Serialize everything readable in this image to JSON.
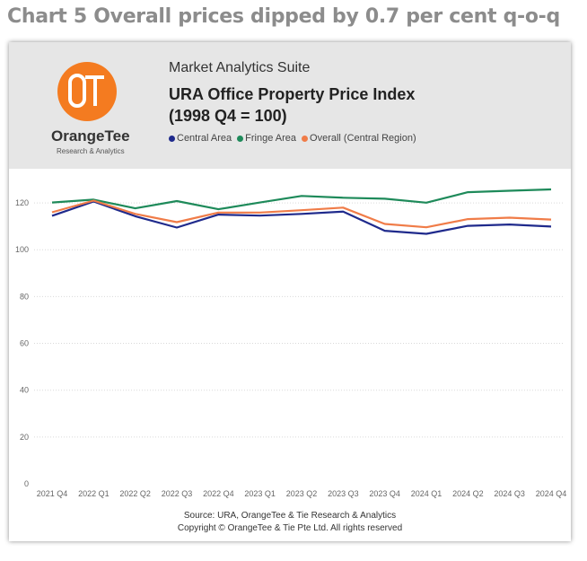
{
  "page": {
    "heading": "Chart 5 Overall prices dipped by 0.7 per cent q-o-q"
  },
  "card": {
    "suite_name": "Market Analytics Suite",
    "title_line1": "URA Office Property Price Index",
    "title_line2": "(1998 Q4 = 100)",
    "logo": {
      "name_part1": "Orange",
      "name_part2": "Tee",
      "subtitle": "Research & Analytics",
      "icon": "orangetee-logo-icon",
      "color": "#f47b20"
    },
    "source_line1": "Source: URA, OrangeTee & Tie Research & Analytics",
    "source_line2": "Copyright © OrangeTee & Tie Pte Ltd. All rights reserved"
  },
  "chart_data": {
    "type": "line",
    "title": "URA Office Property Price Index (1998 Q4 = 100)",
    "x": [
      "2021 Q4",
      "2022 Q1",
      "2022 Q2",
      "2022 Q3",
      "2022 Q4",
      "2023 Q1",
      "2023 Q2",
      "2023 Q3",
      "2023 Q4",
      "2024 Q1",
      "2024 Q2",
      "2024 Q3",
      "2024 Q4"
    ],
    "series": [
      {
        "name": "Central Area",
        "color": "#1f2a8c",
        "values": [
          114.5,
          120.6,
          114.3,
          109.5,
          115.0,
          114.6,
          115.3,
          116.3,
          108.1,
          106.8,
          110.2,
          110.8,
          109.9
        ]
      },
      {
        "name": "Fringe Area",
        "color": "#1e8a5a",
        "values": [
          120.2,
          121.4,
          117.7,
          120.8,
          117.3,
          120.2,
          123.0,
          122.2,
          121.8,
          120.1,
          124.6,
          125.2,
          125.8
        ]
      },
      {
        "name": "Overall (Central Region)",
        "color": "#f07c48",
        "values": [
          116.0,
          121.0,
          115.3,
          111.8,
          115.9,
          115.9,
          116.9,
          118.0,
          111.0,
          109.6,
          113.1,
          113.7,
          112.9
        ]
      }
    ],
    "yticks": [
      0,
      20,
      40,
      60,
      80,
      100,
      120
    ],
    "ylim": [
      0,
      130
    ],
    "grid": true,
    "legend_position": "top",
    "xlabel": "",
    "ylabel": ""
  }
}
